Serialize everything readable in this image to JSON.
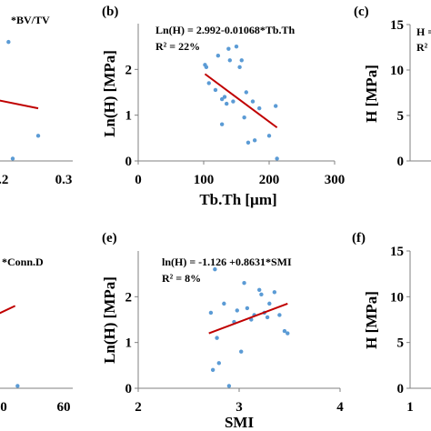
{
  "chart_data": [
    {
      "panel": "a",
      "type": "scatter",
      "label_partial": "",
      "equation_partial": "*BV/TV",
      "xticks": [
        "0.2",
        "0.3"
      ],
      "yticks": [],
      "xlabel": "",
      "ylabel": "",
      "points": [
        [
          0.17,
          2.6
        ],
        [
          0.14,
          0.45
        ],
        [
          0.24,
          0.55
        ],
        [
          0.18,
          0.05
        ]
      ],
      "trend": [
        [
          0.08,
          1.45
        ],
        [
          0.24,
          1.15
        ]
      ],
      "xlim": [
        0.0,
        0.3
      ],
      "ylim": [
        0,
        3
      ]
    },
    {
      "panel": "b",
      "type": "scatter",
      "label": "(b)",
      "equation": "Ln(H) = 2.992-0.01068*Tb.Th",
      "r2": "R² = 22%",
      "xlabel": "Tb.Th [µm]",
      "ylabel": "Ln(H) [MPa]",
      "xticks": [
        "0",
        "100",
        "200",
        "300"
      ],
      "yticks": [
        "0",
        "1",
        "2"
      ],
      "xlim": [
        0,
        300
      ],
      "ylim": [
        0,
        3
      ],
      "points": [
        [
          102,
          2.1
        ],
        [
          104,
          2.05
        ],
        [
          108,
          1.7
        ],
        [
          118,
          1.55
        ],
        [
          122,
          2.3
        ],
        [
          128,
          1.35
        ],
        [
          132,
          1.4
        ],
        [
          135,
          1.25
        ],
        [
          138,
          2.45
        ],
        [
          140,
          2.2
        ],
        [
          145,
          1.3
        ],
        [
          150,
          2.5
        ],
        [
          155,
          2.05
        ],
        [
          158,
          2.2
        ],
        [
          162,
          0.95
        ],
        [
          165,
          1.5
        ],
        [
          168,
          0.4
        ],
        [
          175,
          1.3
        ],
        [
          178,
          0.45
        ],
        [
          185,
          1.15
        ],
        [
          200,
          0.55
        ],
        [
          210,
          1.2
        ],
        [
          212,
          0.05
        ],
        [
          128,
          0.8
        ]
      ],
      "trend": [
        [
          102,
          1.9
        ],
        [
          212,
          0.73
        ]
      ]
    },
    {
      "panel": "c",
      "type": "scatter",
      "label": "(c)",
      "equation_partial": "H =",
      "r2_partial": "R²",
      "ylabel": "H [MPa]",
      "yticks": [
        "0",
        "5",
        "10",
        "15"
      ],
      "ylim": [
        0,
        15
      ]
    },
    {
      "panel": "d",
      "type": "scatter",
      "equation_partial": "*Conn.D",
      "xticks": [
        "0",
        "60"
      ],
      "xlabel": "",
      "xlim": [
        0,
        60
      ],
      "ylim": [
        0,
        3
      ],
      "points": [
        [
          22,
          0.05
        ]
      ],
      "trend": [
        [
          0,
          1.55
        ],
        [
          20,
          1.8
        ]
      ]
    },
    {
      "panel": "e",
      "type": "scatter",
      "label": "(e)",
      "equation": "ln(H) = -1.126 +0.8631*SMI",
      "r2": "R² = 8%",
      "xlabel": "SMI",
      "ylabel": "Ln(H) [MPa]",
      "xticks": [
        "2",
        "3",
        "4"
      ],
      "yticks": [
        "0",
        "1",
        "2"
      ],
      "xlim": [
        2,
        4
      ],
      "ylim": [
        0,
        3
      ],
      "points": [
        [
          2.72,
          1.65
        ],
        [
          2.74,
          0.4
        ],
        [
          2.76,
          2.6
        ],
        [
          2.78,
          1.1
        ],
        [
          2.8,
          0.55
        ],
        [
          2.85,
          1.85
        ],
        [
          2.95,
          1.45
        ],
        [
          2.98,
          1.7
        ],
        [
          3.02,
          0.8
        ],
        [
          3.05,
          2.3
        ],
        [
          3.08,
          1.75
        ],
        [
          3.12,
          1.5
        ],
        [
          3.15,
          1.6
        ],
        [
          3.2,
          2.15
        ],
        [
          3.22,
          2.05
        ],
        [
          3.25,
          1.65
        ],
        [
          3.3,
          1.85
        ],
        [
          3.35,
          2.1
        ],
        [
          3.4,
          1.6
        ],
        [
          3.45,
          1.25
        ],
        [
          3.48,
          1.2
        ],
        [
          2.9,
          0.05
        ],
        [
          3.28,
          1.55
        ]
      ],
      "trend": [
        [
          2.7,
          1.2
        ],
        [
          3.48,
          1.85
        ]
      ]
    },
    {
      "panel": "f",
      "type": "scatter",
      "label": "(f)",
      "ylabel": "H [MPa]",
      "yticks": [
        "0",
        "5",
        "10",
        "15"
      ],
      "ylim": [
        0,
        15
      ],
      "xticks": [
        "1"
      ]
    }
  ],
  "colors": {
    "point": "#5b9bd5",
    "trend": "#c00000",
    "axis": "#808080"
  }
}
